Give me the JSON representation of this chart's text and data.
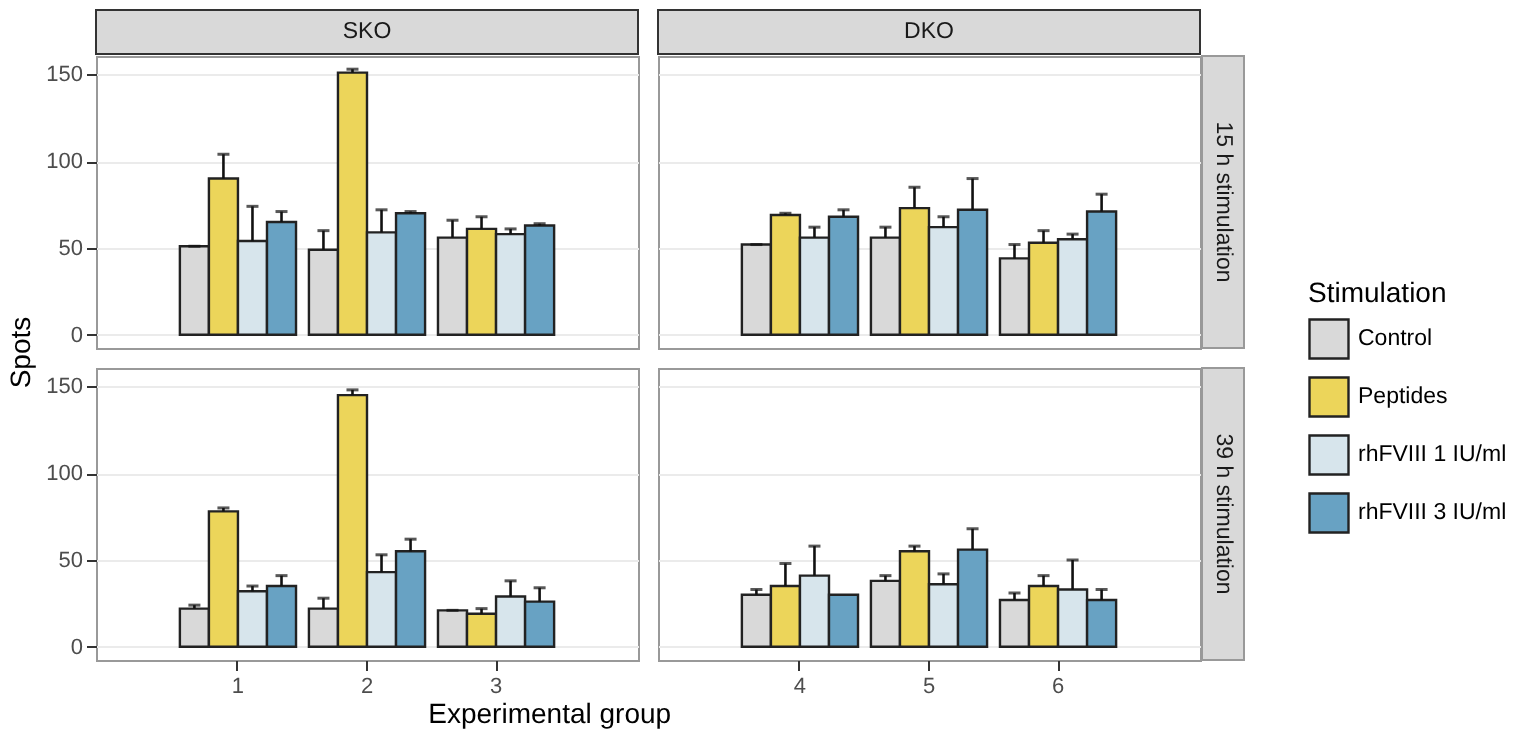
{
  "chart_data": [
    {
      "type": "bar",
      "title": "SKO",
      "ylabel": "Spots",
      "legend": "right",
      "legend_title": "Stimulation",
      "categories": [
        "1",
        "2",
        "3"
      ],
      "ylim": [
        -7.6,
        160.6
      ],
      "yticks": [
        0,
        50,
        100,
        150
      ],
      "grid": "y",
      "tick_labels": "y",
      "series": [
        {
          "name": "Control",
          "color": "#d9d9d9",
          "values": [
            51,
            49,
            56
          ],
          "errors": [
            [
              51,
              51
            ],
            [
              49,
              60
            ],
            [
              56,
              66
            ]
          ]
        },
        {
          "name": "Peptides",
          "color": "#ecd55a",
          "values": [
            90,
            151,
            61
          ],
          "errors": [
            [
              90,
              104
            ],
            [
              151,
              153
            ],
            [
              61,
              68
            ]
          ]
        },
        {
          "name": "rhFVIII 1 IU/ml",
          "color": "#d7e5ec",
          "values": [
            54,
            59,
            58
          ],
          "errors": [
            [
              54,
              74
            ],
            [
              59,
              72
            ],
            [
              58,
              61
            ]
          ]
        },
        {
          "name": "rhFVIII 3 IU/ml",
          "color": "#68a2c3",
          "values": [
            65,
            70,
            63
          ],
          "errors": [
            [
              65,
              71
            ],
            [
              70,
              71
            ],
            [
              63,
              64
            ]
          ]
        }
      ]
    },
    {
      "type": "bar",
      "title": "DKO",
      "y2label": "15 h stimulation",
      "categories": [
        "4",
        "5",
        "6"
      ],
      "ylim": [
        -7.6,
        160.6
      ],
      "yticks": [
        0,
        50,
        100,
        150
      ],
      "grid": "y",
      "tick_labels": false,
      "series": [
        {
          "name": "Control",
          "color": "#d9d9d9",
          "values": [
            52,
            56,
            44
          ],
          "errors": [
            [
              52,
              52
            ],
            [
              56,
              62
            ],
            [
              44,
              52
            ]
          ]
        },
        {
          "name": "Peptides",
          "color": "#ecd55a",
          "values": [
            69,
            73,
            53
          ],
          "errors": [
            [
              69,
              70
            ],
            [
              73,
              85
            ],
            [
              53,
              60
            ]
          ]
        },
        {
          "name": "rhFVIII 1 IU/ml",
          "color": "#d7e5ec",
          "values": [
            56,
            62,
            55
          ],
          "errors": [
            [
              56,
              62
            ],
            [
              62,
              68
            ],
            [
              55,
              58
            ]
          ]
        },
        {
          "name": "rhFVIII 3 IU/ml",
          "color": "#68a2c3",
          "values": [
            68,
            72,
            71
          ],
          "errors": [
            [
              68,
              72
            ],
            [
              72,
              90
            ],
            [
              71,
              81
            ]
          ]
        }
      ]
    },
    {
      "type": "bar",
      "xlabel": "Experimental group",
      "categories": [
        "1",
        "2",
        "3"
      ],
      "ylim": [
        -7.6,
        160.6
      ],
      "yticks": [
        0,
        50,
        100,
        150
      ],
      "grid": "y",
      "series": [
        {
          "name": "Control",
          "color": "#d9d9d9",
          "values": [
            22,
            22,
            21
          ],
          "errors": [
            [
              22,
              24
            ],
            [
              22,
              28
            ],
            [
              21,
              21
            ]
          ]
        },
        {
          "name": "Peptides",
          "color": "#ecd55a",
          "values": [
            78,
            145,
            19
          ],
          "errors": [
            [
              78,
              80
            ],
            [
              145,
              148
            ],
            [
              19,
              22
            ]
          ]
        },
        {
          "name": "rhFVIII 1 IU/ml",
          "color": "#d7e5ec",
          "values": [
            32,
            43,
            29
          ],
          "errors": [
            [
              32,
              35
            ],
            [
              43,
              53
            ],
            [
              29,
              38
            ]
          ]
        },
        {
          "name": "rhFVIII 3 IU/ml",
          "color": "#68a2c3",
          "values": [
            35,
            55,
            26
          ],
          "errors": [
            [
              35,
              41
            ],
            [
              55,
              62
            ],
            [
              26,
              34
            ]
          ]
        }
      ]
    },
    {
      "type": "bar",
      "y2label": "39 h stimulation",
      "categories": [
        "4",
        "5",
        "6"
      ],
      "ylim": [
        -7.6,
        160.6
      ],
      "yticks": [
        0,
        50,
        100,
        150
      ],
      "grid": "y",
      "tick_labels": "x",
      "series": [
        {
          "name": "Control",
          "color": "#d9d9d9",
          "values": [
            30,
            38,
            27
          ],
          "errors": [
            [
              30,
              33
            ],
            [
              38,
              41
            ],
            [
              27,
              31
            ]
          ]
        },
        {
          "name": "Peptides",
          "color": "#ecd55a",
          "values": [
            35,
            55,
            35
          ],
          "errors": [
            [
              35,
              48
            ],
            [
              55,
              58
            ],
            [
              35,
              41
            ]
          ]
        },
        {
          "name": "rhFVIII 1 IU/ml",
          "color": "#d7e5ec",
          "values": [
            41,
            36,
            33
          ],
          "errors": [
            [
              41,
              58
            ],
            [
              36,
              42
            ],
            [
              33,
              50
            ]
          ]
        },
        {
          "name": "rhFVIII 3 IU/ml",
          "color": "#68a2c3",
          "values": [
            30,
            56,
            27
          ],
          "errors": [
            null,
            [
              56,
              68
            ],
            [
              27,
              33
            ]
          ]
        }
      ]
    }
  ]
}
